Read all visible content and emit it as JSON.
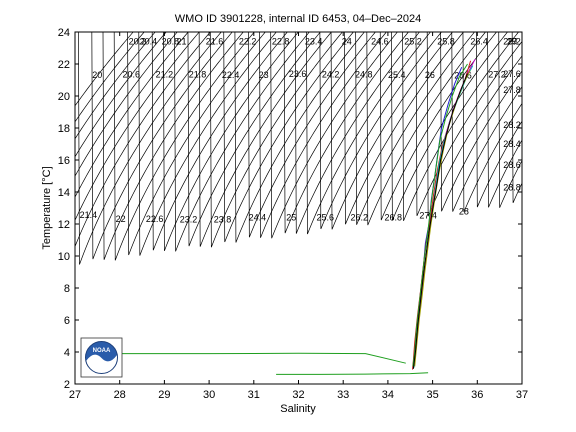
{
  "chart_data": {
    "type": "scatter",
    "title": "WMO ID 3901228, internal ID 6453, 04–Dec–2024",
    "xlabel": "Salinity",
    "ylabel": "Temperature [°C]",
    "xlim": [
      27,
      37
    ],
    "ylim": [
      2,
      24
    ],
    "x_ticks": [
      27,
      28,
      29,
      30,
      31,
      32,
      33,
      34,
      35,
      36,
      37
    ],
    "y_ticks": [
      2,
      4,
      6,
      8,
      10,
      12,
      14,
      16,
      18,
      20,
      22,
      24
    ],
    "grid": false,
    "logo": "noaa-logo",
    "isopycnal_labels": [
      "20",
      "20.2",
      "20.4",
      "20.6",
      "20.8",
      "21",
      "21.2",
      "21.4",
      "21.6",
      "21.8",
      "22",
      "22.2",
      "22.4",
      "22.6",
      "22.8",
      "23",
      "23.2",
      "23.4",
      "23.6",
      "23.8",
      "24",
      "24.2",
      "24.4",
      "24.6",
      "24.8",
      "25",
      "25.2",
      "25.4",
      "25.6",
      "25.8",
      "26",
      "26.2",
      "26.4",
      "26.6",
      "26.8",
      "27",
      "27.2",
      "27.4",
      "27.6",
      "27.8",
      "28",
      "28.2",
      "28.4",
      "28.6",
      "28.8",
      "29",
      "29.2"
    ],
    "series": [
      {
        "color": "#1f1fcf",
        "x": [
          34.57,
          34.58,
          34.62,
          34.68,
          34.74,
          34.8,
          34.84,
          34.92,
          34.97,
          35.05,
          35.12,
          35.2,
          35.35,
          35.5,
          35.65
        ],
        "y": [
          3.0,
          3.6,
          5.0,
          6.5,
          8.0,
          9.5,
          10.8,
          12.0,
          13.5,
          15.0,
          16.5,
          18.0,
          19.5,
          20.8,
          21.8
        ]
      },
      {
        "color": "#cf1f1f",
        "x": [
          34.55,
          34.57,
          34.6,
          34.66,
          34.73,
          34.79,
          34.86,
          34.95,
          35.02,
          35.1,
          35.22,
          35.38,
          35.55,
          35.72,
          35.85
        ],
        "y": [
          2.9,
          3.5,
          4.6,
          6.2,
          7.8,
          9.3,
          10.9,
          12.3,
          13.8,
          15.3,
          16.9,
          18.4,
          19.8,
          21.0,
          22.2
        ]
      },
      {
        "color": "#1f9f1f",
        "x": [
          34.56,
          34.6,
          34.64,
          34.7,
          34.76,
          34.82,
          34.88,
          34.94,
          35.0,
          35.08,
          35.16,
          35.3,
          35.44,
          35.6,
          35.78
        ],
        "y": [
          3.1,
          4.0,
          5.5,
          7.0,
          8.5,
          10.0,
          11.2,
          12.6,
          14.0,
          15.6,
          17.2,
          18.7,
          20.0,
          21.2,
          22.0
        ]
      },
      {
        "color": "#00bfbf",
        "x": [
          34.58,
          34.61,
          34.66,
          34.72,
          34.78,
          34.85,
          34.9,
          34.98,
          35.06,
          35.14,
          35.25,
          35.4,
          35.58,
          35.75,
          35.9
        ],
        "y": [
          3.0,
          3.8,
          5.2,
          6.8,
          8.3,
          9.8,
          11.1,
          12.5,
          14.1,
          15.7,
          17.1,
          18.6,
          19.9,
          21.1,
          21.9
        ]
      },
      {
        "color": "#bf00bf",
        "x": [
          34.59,
          34.63,
          34.68,
          34.74,
          34.81,
          34.87,
          34.93,
          35.01,
          35.1,
          35.2,
          35.32,
          35.47,
          35.63,
          35.8,
          35.95
        ],
        "y": [
          3.2,
          4.2,
          5.8,
          7.4,
          8.9,
          10.3,
          11.6,
          13.0,
          14.6,
          16.2,
          17.8,
          19.2,
          20.4,
          21.5,
          22.3
        ]
      },
      {
        "color": "#9f9f00",
        "x": [
          34.6,
          34.64,
          34.7,
          34.77,
          34.83,
          34.9,
          34.96,
          35.04,
          35.13,
          35.24,
          35.36,
          35.52,
          35.68,
          35.84
        ],
        "y": [
          3.1,
          4.3,
          6.0,
          7.6,
          9.1,
          10.6,
          11.9,
          13.4,
          15.0,
          16.6,
          18.1,
          19.5,
          20.7,
          21.6
        ]
      },
      {
        "color": "#000000",
        "x": [
          34.57,
          34.62,
          34.67,
          34.73,
          34.79,
          34.86,
          34.92,
          35.0,
          35.09,
          35.18,
          35.3,
          35.45,
          35.62,
          35.78
        ],
        "y": [
          2.95,
          4.1,
          5.7,
          7.2,
          8.7,
          10.2,
          11.5,
          12.9,
          14.4,
          16.0,
          17.5,
          19.0,
          20.3,
          21.4
        ]
      },
      {
        "color": "#1f9f1f",
        "x": [
          31.5,
          32.5,
          33.5,
          34.5,
          34.9
        ],
        "y": [
          2.6,
          2.6,
          2.62,
          2.65,
          2.7
        ]
      },
      {
        "color": "#1f9f1f",
        "x": [
          28.0,
          30.0,
          32.0,
          33.5,
          34.4
        ],
        "y": [
          3.9,
          3.9,
          3.92,
          3.9,
          3.3
        ]
      }
    ]
  }
}
